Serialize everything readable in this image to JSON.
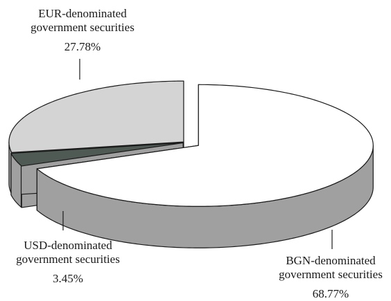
{
  "chart_data": {
    "type": "pie",
    "style": "3d-exploded",
    "title": "",
    "slices": [
      {
        "category_line1": "BGN-denominated",
        "category_line2": "government securities",
        "value": 68.77,
        "value_label": "68.77%",
        "color": "#ffffff"
      },
      {
        "category_line1": "USD-denominated",
        "category_line2": "government securities",
        "value": 3.45,
        "value_label": "3.45%",
        "color": "#4f5a55"
      },
      {
        "category_line1": "EUR-denominated",
        "category_line2": "government securities",
        "value": 27.78,
        "value_label": "27.78%",
        "color": "#d4d4d4"
      }
    ],
    "side_color": "#a0a0a0",
    "outline_color": "#1a1a1a"
  }
}
